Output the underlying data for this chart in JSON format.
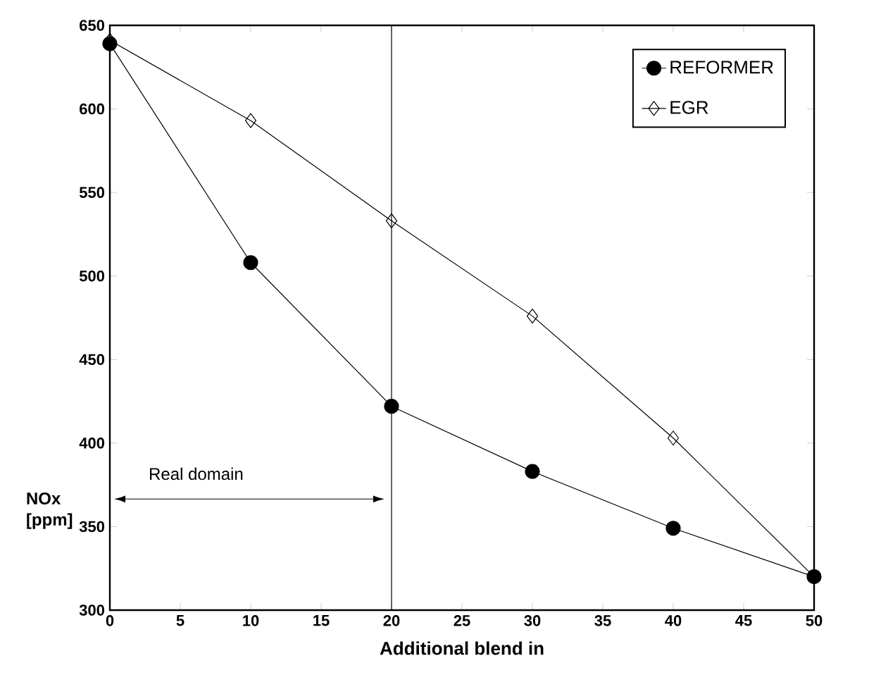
{
  "chart_data": {
    "type": "line",
    "xlabel": "Additional blend in",
    "ylabel": "NOx [ppm]",
    "x": [
      0,
      10,
      20,
      30,
      40,
      50
    ],
    "series": [
      {
        "name": "REFORMER",
        "color": "#000000",
        "marker": "circle",
        "values": [
          639,
          508,
          422,
          383,
          349,
          320
        ]
      },
      {
        "name": "EGR",
        "color": "#000000",
        "marker": "diamond",
        "values": [
          641,
          593,
          533,
          476,
          403,
          320
        ]
      }
    ],
    "xlim": [
      0,
      50
    ],
    "ylim": [
      300,
      650
    ],
    "xticks": [
      0,
      5,
      10,
      15,
      20,
      25,
      30,
      35,
      40,
      45,
      50
    ],
    "yticks": [
      300,
      350,
      400,
      450,
      500,
      550,
      600,
      650
    ],
    "ref_lines": [
      {
        "axis": "x",
        "value": 20
      }
    ],
    "annotations": [
      "Real domain"
    ],
    "legend": "top right",
    "grid": false,
    "line_style": "solid"
  }
}
